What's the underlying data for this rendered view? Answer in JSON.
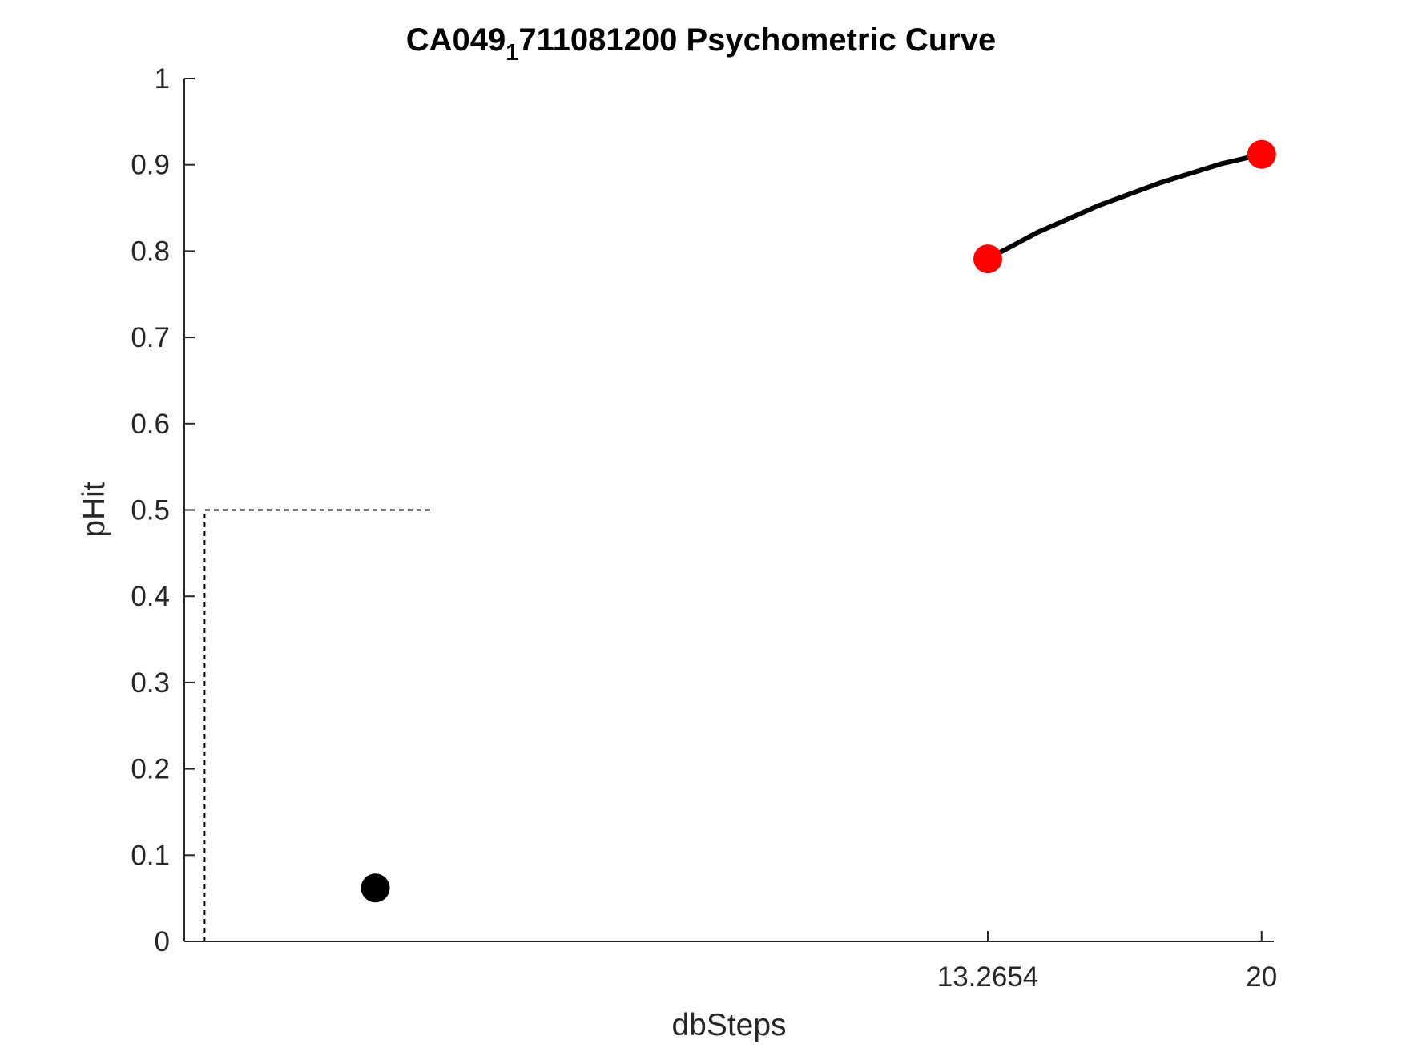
{
  "chart_data": {
    "type": "line",
    "title": {
      "main": "CA049",
      "subscript": "1",
      "rest": "711081200 Psychometric Curve"
    },
    "xlabel": "dbSteps",
    "ylabel": "pHit",
    "xlim": [
      -6.5,
      20.3
    ],
    "ylim": [
      0,
      1
    ],
    "x_ticks": [
      13.2654,
      20
    ],
    "x_tick_labels": [
      "13.2654",
      "20"
    ],
    "y_ticks": [
      0,
      0.1,
      0.2,
      0.3,
      0.4,
      0.5,
      0.6,
      0.7,
      0.8,
      0.9,
      1
    ],
    "y_tick_labels": [
      "0",
      "0.1",
      "0.2",
      "0.3",
      "0.4",
      "0.5",
      "0.6",
      "0.7",
      "0.8",
      "0.9",
      "1"
    ],
    "grid": false,
    "series": [
      {
        "style": "line",
        "color": "#000000",
        "x": [
          13.2654,
          14.5,
          16,
          17.5,
          19,
          20
        ],
        "y": [
          0.791,
          0.822,
          0.853,
          0.879,
          0.901,
          0.912
        ]
      },
      {
        "style": "points",
        "color": "#ff0000",
        "x": [
          13.2654,
          20
        ],
        "y": [
          0.791,
          0.912
        ]
      },
      {
        "style": "points",
        "color": "#000000",
        "x": [
          -1.8
        ],
        "y": [
          0.062
        ]
      },
      {
        "style": "dashed-guide",
        "color": "#000000",
        "x": [
          -6,
          -6,
          -0.4
        ],
        "y": [
          0,
          0.5,
          0.5
        ]
      }
    ]
  }
}
